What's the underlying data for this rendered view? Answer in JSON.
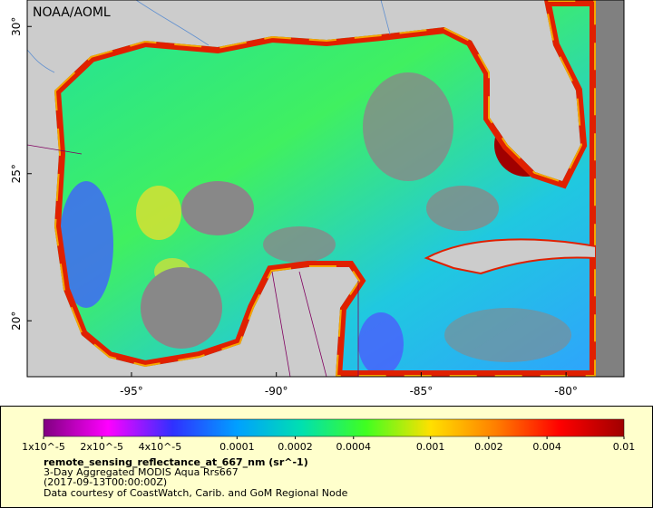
{
  "map": {
    "watermark": "NOAA/AOML",
    "lon_lim": [
      -98.6,
      -78.0
    ],
    "lat_lim": [
      18.1,
      30.9
    ],
    "lon_ticks": [
      {
        "value": -95,
        "label": "-95°"
      },
      {
        "value": -90,
        "label": "-90°"
      },
      {
        "value": -85,
        "label": "-85°"
      },
      {
        "value": -80,
        "label": "-80°"
      }
    ],
    "lat_ticks": [
      {
        "value": 20,
        "label": "20°"
      },
      {
        "value": 25,
        "label": "25°"
      },
      {
        "value": 30,
        "label": "30°"
      }
    ]
  },
  "legend": {
    "colorbar": {
      "scale": "log",
      "lim": [
        1e-05,
        0.01
      ],
      "colors": [
        "#800080",
        "#ff00ff",
        "#3030ff",
        "#00a0ff",
        "#00e0b0",
        "#40ff20",
        "#ffe000",
        "#ff8000",
        "#ff0000",
        "#a00000"
      ],
      "ticks": [
        {
          "value": 1e-05,
          "label": "1x10^-5"
        },
        {
          "value": 2e-05,
          "label": "2x10^-5"
        },
        {
          "value": 4e-05,
          "label": "4x10^-5"
        },
        0.0001,
        0.0002,
        0.0004,
        0.001,
        0.002,
        0.004,
        0.01
      ]
    },
    "variable": "remote_sensing_reflectance_at_667_nm (sr^-1)",
    "dataset": "3-Day Aggregated MODIS Aqua Rrs667",
    "time": "(2017-09-13T00:00:00Z)",
    "credit": "Data courtesy of CoastWatch, Carib. and GoM Regional Node"
  }
}
